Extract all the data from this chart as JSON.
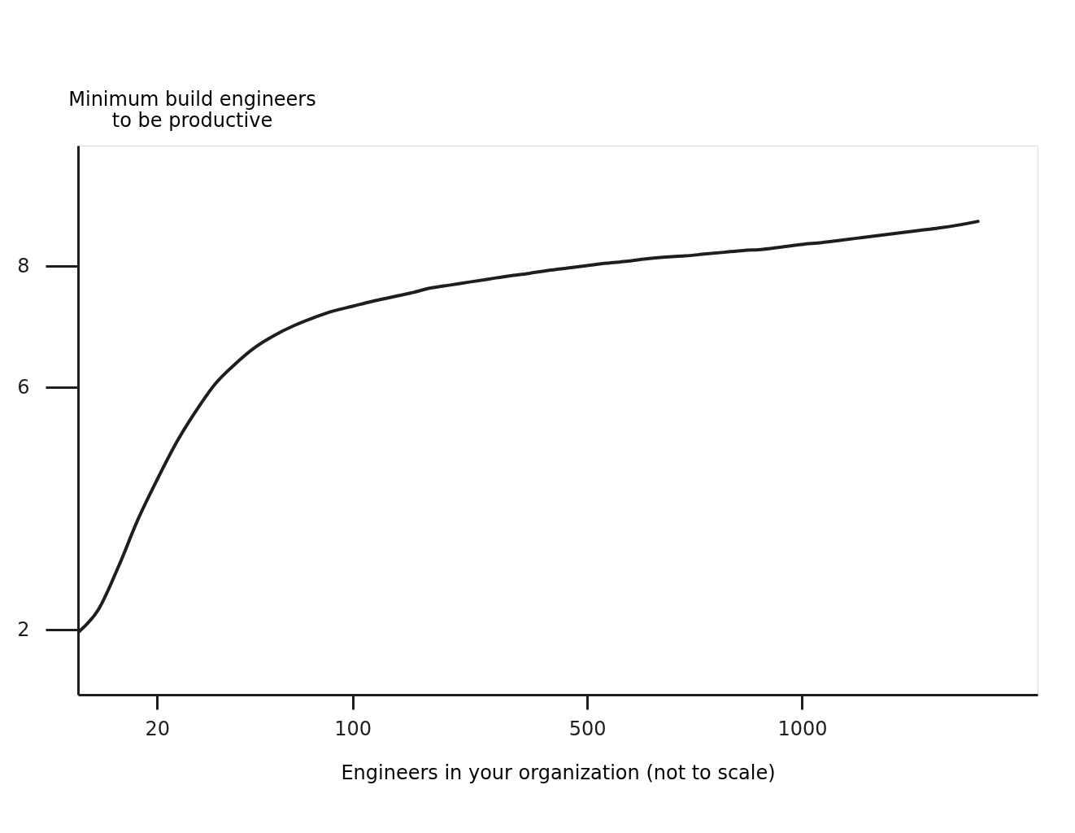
{
  "chart_data": {
    "type": "line",
    "xlabel": "Engineers in your organization (not to scale)",
    "ylabel": "Minimum build engineers\nto be productive",
    "categories": [
      null,
      null,
      null,
      null,
      "20",
      null,
      null,
      null,
      null,
      null,
      null,
      null,
      null,
      null,
      "100",
      null,
      null,
      null,
      null,
      null,
      null,
      null,
      null,
      null,
      null,
      null,
      "500",
      null,
      null,
      null,
      null,
      null,
      null,
      null,
      null,
      null,
      null,
      "1000",
      null,
      null,
      null,
      null,
      null,
      null,
      null,
      null,
      null,
      null,
      null,
      null
    ],
    "series": [
      {
        "color": "#1e1e1e",
        "values": [
          1.97,
          2.34,
          3.03,
          3.81,
          4.48,
          5.1,
          5.62,
          6.07,
          6.39,
          6.66,
          6.86,
          7.02,
          7.15,
          7.26,
          7.34,
          7.42,
          7.49,
          7.56,
          7.64,
          7.69,
          7.74,
          7.79,
          7.84,
          7.88,
          7.93,
          7.97,
          8.01,
          8.05,
          8.08,
          8.12,
          8.15,
          8.17,
          8.2,
          8.23,
          8.26,
          8.28,
          8.32,
          8.36,
          8.39,
          8.43,
          8.47,
          8.51,
          8.55,
          8.59,
          8.63,
          8.68,
          8.74,
          null,
          null,
          null
        ]
      }
    ],
    "ylim": [
      0.93,
      9.99
    ],
    "yticks": [
      2,
      6,
      8
    ],
    "grid": false,
    "marker": "none",
    "line_style": "solid"
  }
}
